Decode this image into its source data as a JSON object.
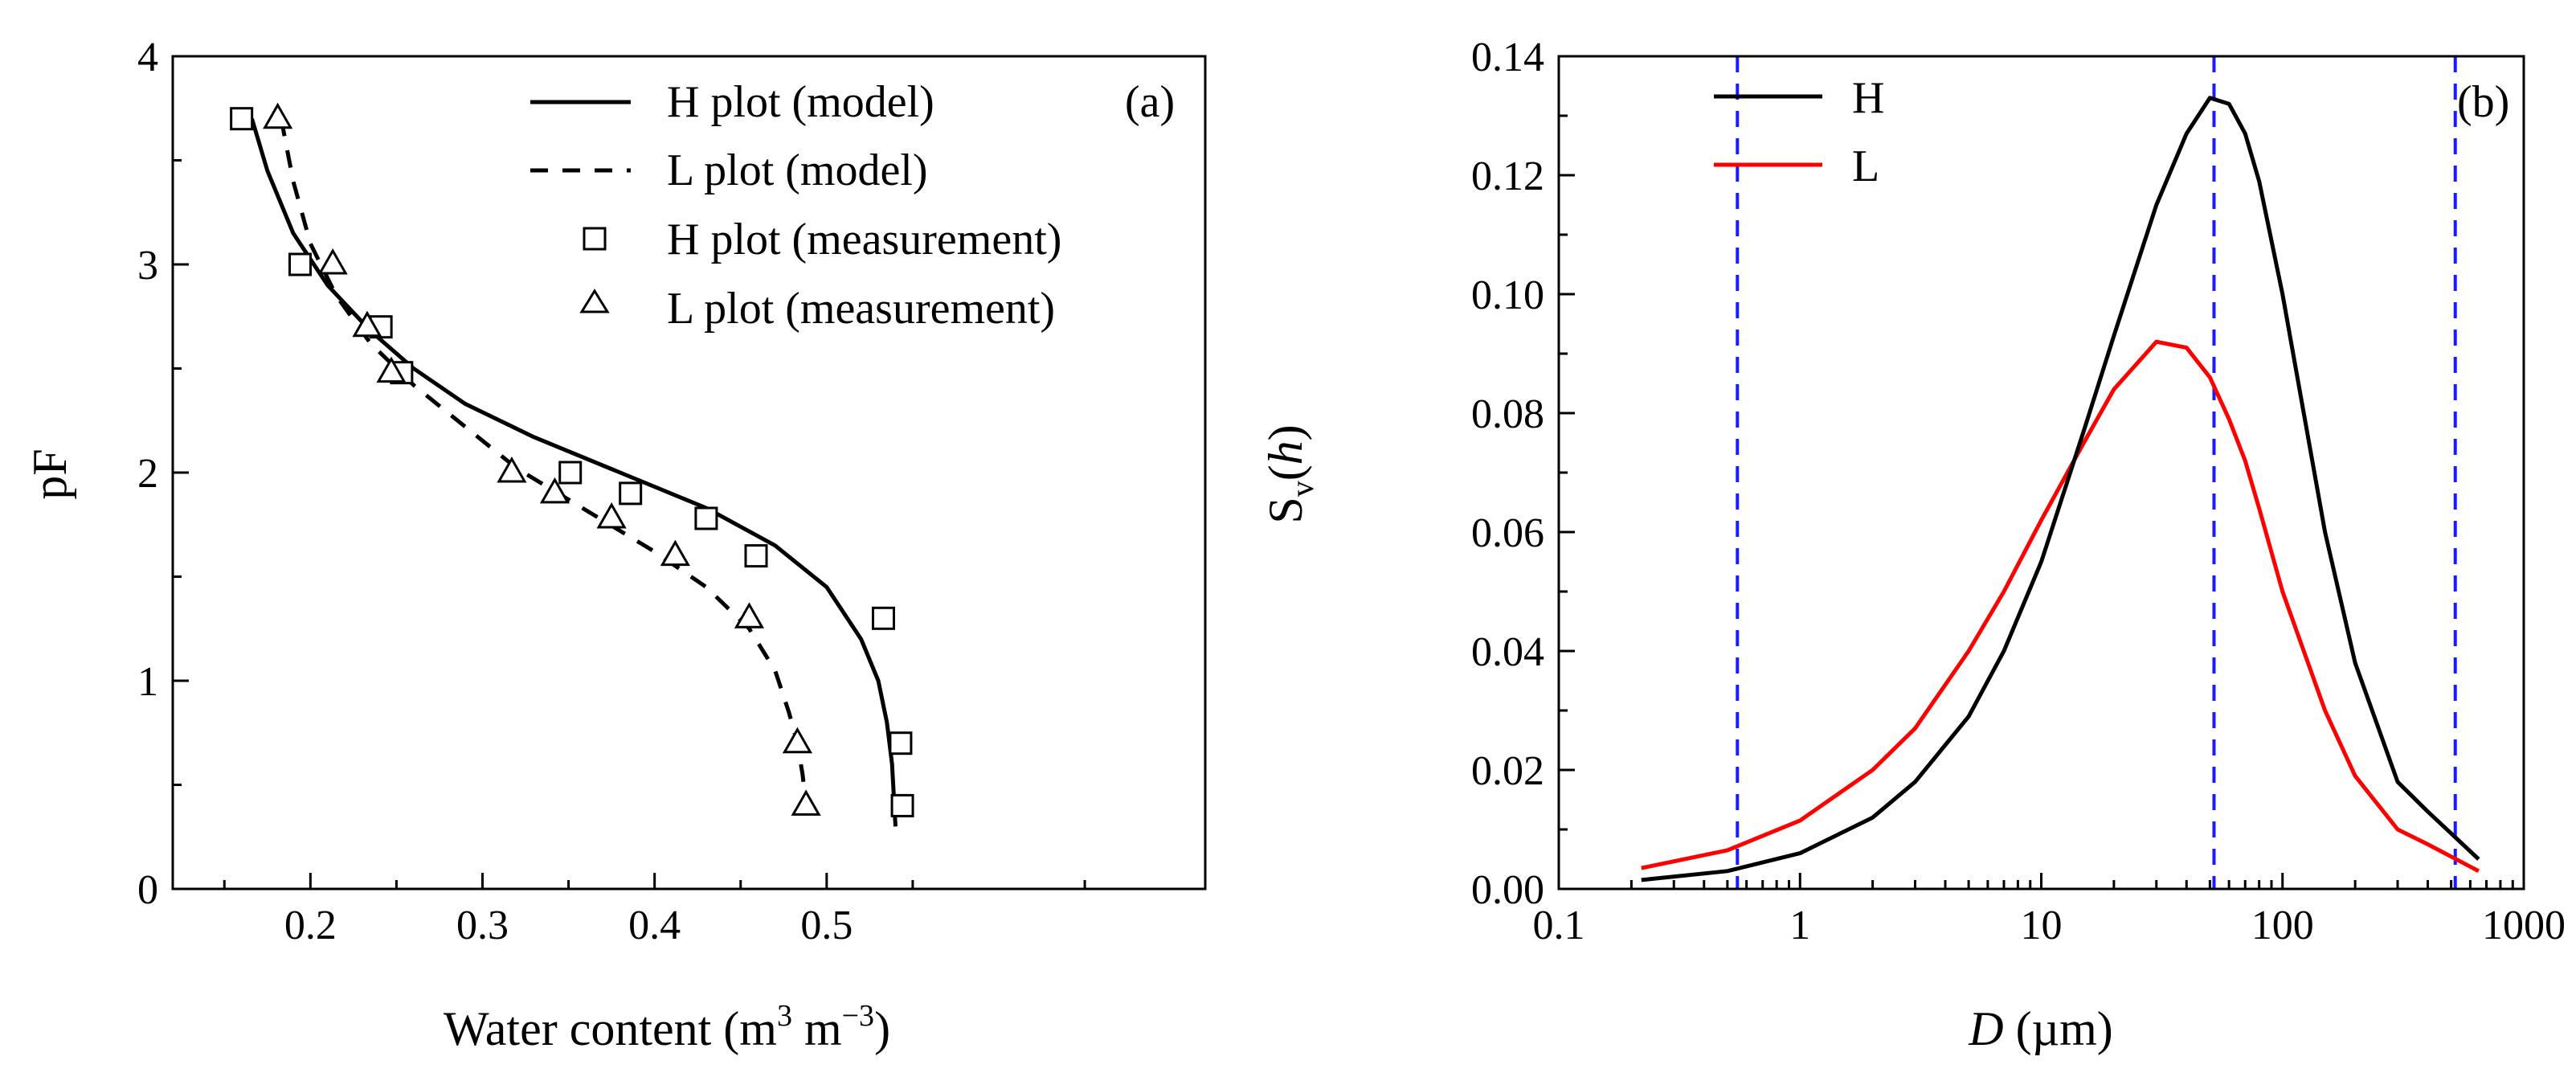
{
  "chart_data": [
    {
      "id": "a",
      "type": "line",
      "panel_label": "(a)",
      "xlabel": {
        "base": "Water content (m",
        "sup1": "3",
        "mid": " m",
        "sup2": "−3",
        "end": ")"
      },
      "ylabel": "pF",
      "xlim": [
        0.12,
        0.72
      ],
      "ylim": [
        0,
        4
      ],
      "xticks": [
        0.2,
        0.3,
        0.4,
        0.5
      ],
      "xtick_labels": [
        "0.2",
        "0.3",
        "0.4",
        "0.5"
      ],
      "yticks": [
        0,
        1,
        2,
        3,
        4
      ],
      "ytick_labels": [
        "0",
        "1",
        "2",
        "3",
        "4"
      ],
      "legend": [
        {
          "label": "H plot (model)",
          "kind": "line",
          "dash": "solid"
        },
        {
          "label": "L plot (model)",
          "kind": "line",
          "dash": "dashed"
        },
        {
          "label": "H plot (measurement)",
          "kind": "marker",
          "marker": "square"
        },
        {
          "label": "L plot (measurement)",
          "kind": "marker",
          "marker": "triangle"
        }
      ],
      "series": [
        {
          "name": "H plot (model)",
          "style": "solid",
          "color": "#000000",
          "x": [
            0.166,
            0.175,
            0.19,
            0.21,
            0.235,
            0.26,
            0.29,
            0.33,
            0.38,
            0.43,
            0.47,
            0.5,
            0.52,
            0.53,
            0.535,
            0.538,
            0.539,
            0.54
          ],
          "y": [
            3.7,
            3.45,
            3.15,
            2.9,
            2.68,
            2.5,
            2.33,
            2.17,
            2.0,
            1.83,
            1.65,
            1.45,
            1.2,
            1.0,
            0.8,
            0.6,
            0.45,
            0.3
          ]
        },
        {
          "name": "L plot (model)",
          "style": "dashed",
          "color": "#000000",
          "x": [
            0.183,
            0.19,
            0.2,
            0.215,
            0.235,
            0.26,
            0.29,
            0.32,
            0.36,
            0.4,
            0.43,
            0.455,
            0.47,
            0.478,
            0.483,
            0.486,
            0.488,
            0.489
          ],
          "y": [
            3.7,
            3.4,
            3.1,
            2.85,
            2.62,
            2.42,
            2.22,
            2.02,
            1.82,
            1.62,
            1.45,
            1.25,
            1.05,
            0.85,
            0.7,
            0.55,
            0.4,
            0.3
          ]
        },
        {
          "name": "H plot (measurement)",
          "style": "marker",
          "marker": "square",
          "x": [
            0.16,
            0.194,
            0.241,
            0.253,
            0.351,
            0.386,
            0.43,
            0.459,
            0.533,
            0.543,
            0.544
          ],
          "y": [
            3.7,
            3.0,
            2.7,
            2.48,
            2.0,
            1.9,
            1.78,
            1.6,
            1.3,
            0.7,
            0.4
          ]
        },
        {
          "name": "L plot (measurement)",
          "style": "marker",
          "marker": "triangle",
          "x": [
            0.181,
            0.213,
            0.233,
            0.247,
            0.317,
            0.342,
            0.375,
            0.412,
            0.455,
            0.483,
            0.488
          ],
          "y": [
            3.7,
            3.0,
            2.7,
            2.48,
            2.0,
            1.9,
            1.78,
            1.6,
            1.3,
            0.7,
            0.4
          ]
        }
      ]
    },
    {
      "id": "b",
      "type": "line",
      "panel_label": "(b)",
      "xscale": "log",
      "xlabel": {
        "var": "D",
        "unit": " (µm)"
      },
      "ylabel": {
        "main": "S",
        "sub": "v",
        "open": "(",
        "var": "h",
        "close": ")"
      },
      "xlim": [
        0.1,
        1000
      ],
      "ylim": [
        0,
        0.14
      ],
      "xticks": [
        0.1,
        1,
        10,
        100,
        1000
      ],
      "xtick_labels": [
        "0.1",
        "1",
        "10",
        "100",
        "1000"
      ],
      "yticks": [
        0,
        0.02,
        0.04,
        0.06,
        0.08,
        0.1,
        0.12,
        0.14
      ],
      "ytick_labels": [
        "0.00",
        "0.02",
        "0.04",
        "0.06",
        "0.08",
        "0.10",
        "0.12",
        "0.14"
      ],
      "vlines": [
        0.55,
        52,
        520
      ],
      "vline_color": "#1a1aff",
      "legend": [
        {
          "label": "H",
          "color": "#000000"
        },
        {
          "label": "L",
          "color": "#ff0000"
        }
      ],
      "series": [
        {
          "name": "H",
          "color": "#000000",
          "x": [
            0.22,
            0.5,
            1,
            2,
            3,
            5,
            7,
            10,
            15,
            20,
            30,
            40,
            50,
            60,
            70,
            80,
            100,
            150,
            200,
            300,
            400,
            650
          ],
          "y": [
            0.0015,
            0.003,
            0.006,
            0.012,
            0.018,
            0.029,
            0.04,
            0.055,
            0.077,
            0.093,
            0.115,
            0.127,
            0.133,
            0.132,
            0.127,
            0.119,
            0.1,
            0.06,
            0.038,
            0.018,
            0.013,
            0.005
          ]
        },
        {
          "name": "L",
          "color": "#ff0000",
          "x": [
            0.22,
            0.5,
            1,
            2,
            3,
            5,
            7,
            10,
            15,
            20,
            30,
            40,
            50,
            60,
            70,
            80,
            100,
            150,
            200,
            300,
            400,
            650
          ],
          "y": [
            0.0035,
            0.0065,
            0.0115,
            0.02,
            0.027,
            0.04,
            0.05,
            0.062,
            0.075,
            0.084,
            0.092,
            0.091,
            0.086,
            0.079,
            0.072,
            0.064,
            0.05,
            0.03,
            0.019,
            0.01,
            0.0075,
            0.003
          ]
        }
      ]
    }
  ]
}
